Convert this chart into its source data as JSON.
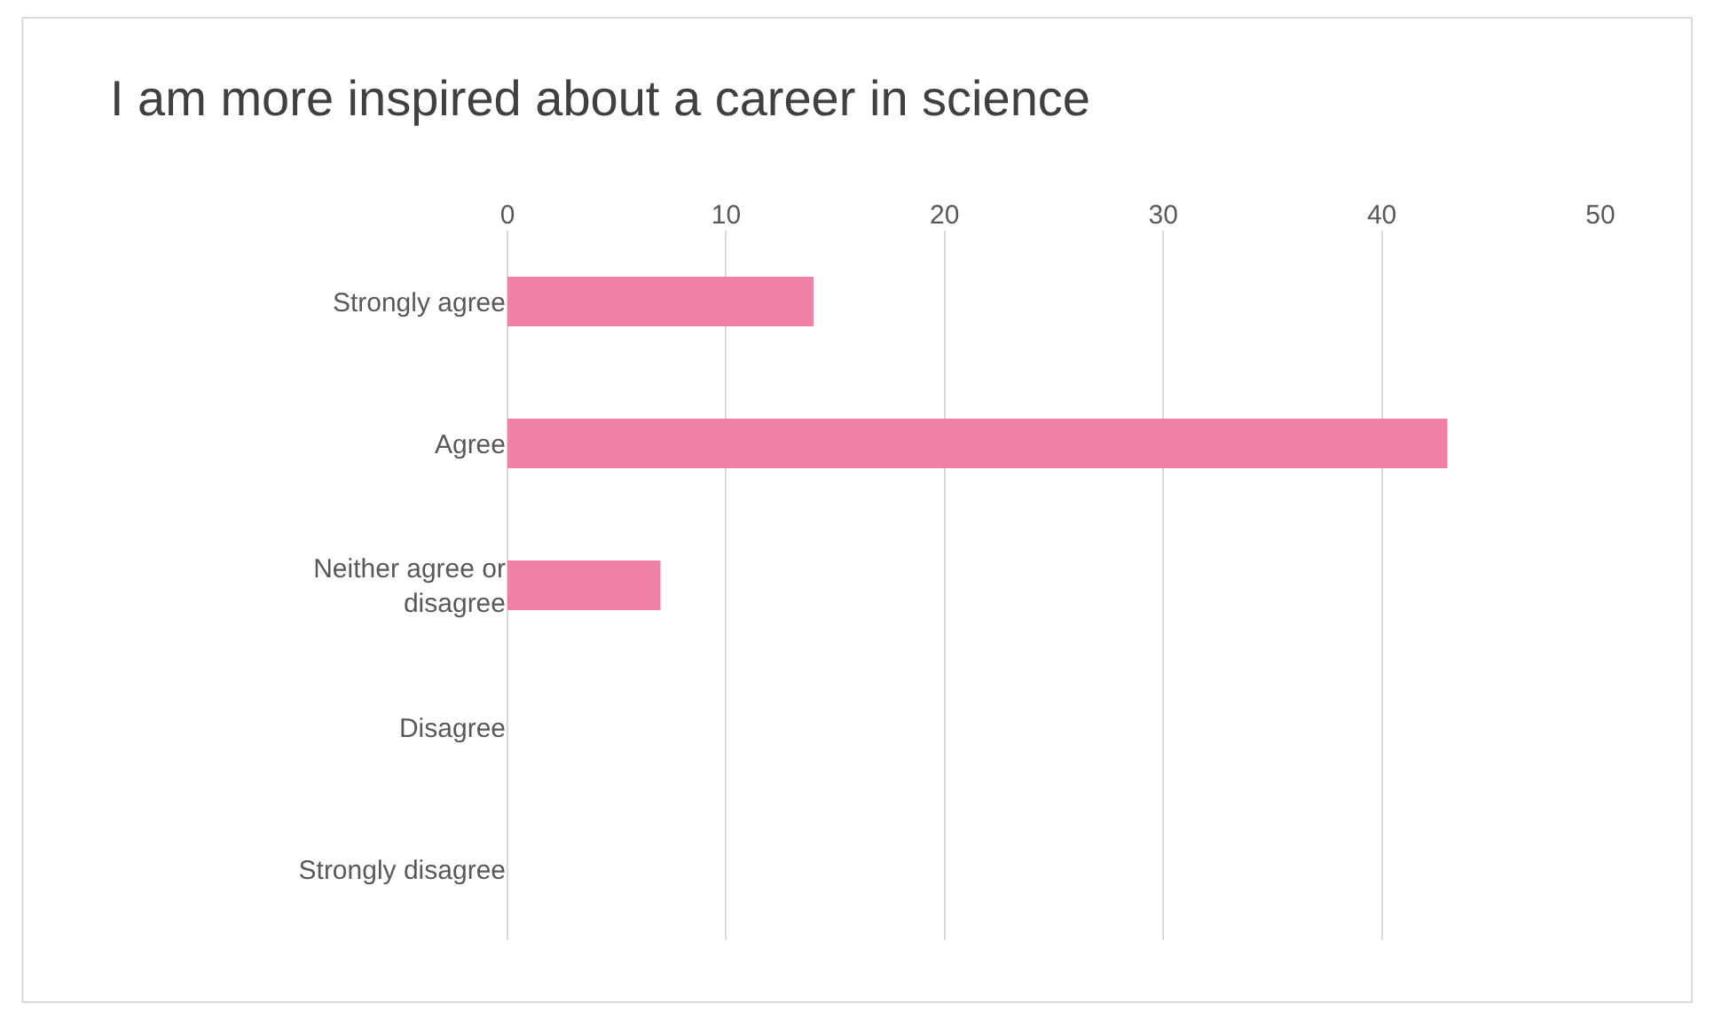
{
  "chart_data": {
    "type": "bar",
    "orientation": "horizontal",
    "title": "I am more inspired about a career in science",
    "categories": [
      "Strongly agree",
      "Agree",
      "Neither agree or disagree",
      "Disagree",
      "Strongly disagree"
    ],
    "values": [
      14,
      43,
      7,
      0,
      0
    ],
    "color": "#f07fa6",
    "xlim": [
      0,
      50
    ],
    "xticks": [
      0,
      10,
      20,
      30,
      40,
      50
    ],
    "grid": "x",
    "legend": false
  }
}
